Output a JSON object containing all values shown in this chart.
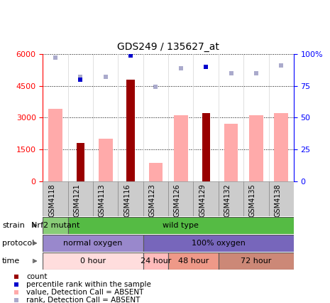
{
  "title": "GDS249 / 135627_at",
  "samples": [
    "GSM4118",
    "GSM4121",
    "GSM4113",
    "GSM4116",
    "GSM4123",
    "GSM4126",
    "GSM4129",
    "GSM4132",
    "GSM4135",
    "GSM4138"
  ],
  "count_values": [
    0,
    1800,
    0,
    4800,
    0,
    0,
    3200,
    0,
    0,
    0
  ],
  "value_absent": [
    3400,
    0,
    2000,
    0,
    850,
    3100,
    0,
    2700,
    3100,
    3200
  ],
  "rank_absent": [
    97,
    82,
    82,
    99,
    74,
    89,
    90,
    85,
    85,
    91
  ],
  "percentile_rank": [
    0,
    80,
    0,
    99,
    0,
    0,
    90,
    0,
    0,
    0
  ],
  "ylim_left": [
    0,
    6000
  ],
  "ylim_right": [
    0,
    100
  ],
  "yticks_left": [
    0,
    1500,
    3000,
    4500,
    6000
  ],
  "yticks_right": [
    0,
    25,
    50,
    75,
    100
  ],
  "ytick_labels_right": [
    "0",
    "25",
    "50",
    "75",
    "100%"
  ],
  "bar_color_count": "#990000",
  "bar_color_absent": "#ffaaaa",
  "dot_color_rank_absent": "#aaaacc",
  "dot_color_percentile": "#0000cc",
  "strain_labels": [
    {
      "text": "Nrf2 mutant",
      "start": 0,
      "end": 1,
      "color": "#88cc77"
    },
    {
      "text": "wild type",
      "start": 1,
      "end": 10,
      "color": "#55bb44"
    }
  ],
  "protocol_labels": [
    {
      "text": "normal oxygen",
      "start": 0,
      "end": 4,
      "color": "#9988cc"
    },
    {
      "text": "100% oxygen",
      "start": 4,
      "end": 10,
      "color": "#7766bb"
    }
  ],
  "time_labels": [
    {
      "text": "0 hour",
      "start": 0,
      "end": 4,
      "color": "#ffdddd"
    },
    {
      "text": "24 hour",
      "start": 4,
      "end": 5,
      "color": "#ffbbbb"
    },
    {
      "text": "48 hour",
      "start": 5,
      "end": 7,
      "color": "#ee9988"
    },
    {
      "text": "72 hour",
      "start": 7,
      "end": 10,
      "color": "#cc8877"
    }
  ],
  "legend_items": [
    {
      "color": "#990000",
      "label": "count"
    },
    {
      "color": "#0000cc",
      "label": "percentile rank within the sample"
    },
    {
      "color": "#ffaaaa",
      "label": "value, Detection Call = ABSENT"
    },
    {
      "color": "#aaaacc",
      "label": "rank, Detection Call = ABSENT"
    }
  ]
}
